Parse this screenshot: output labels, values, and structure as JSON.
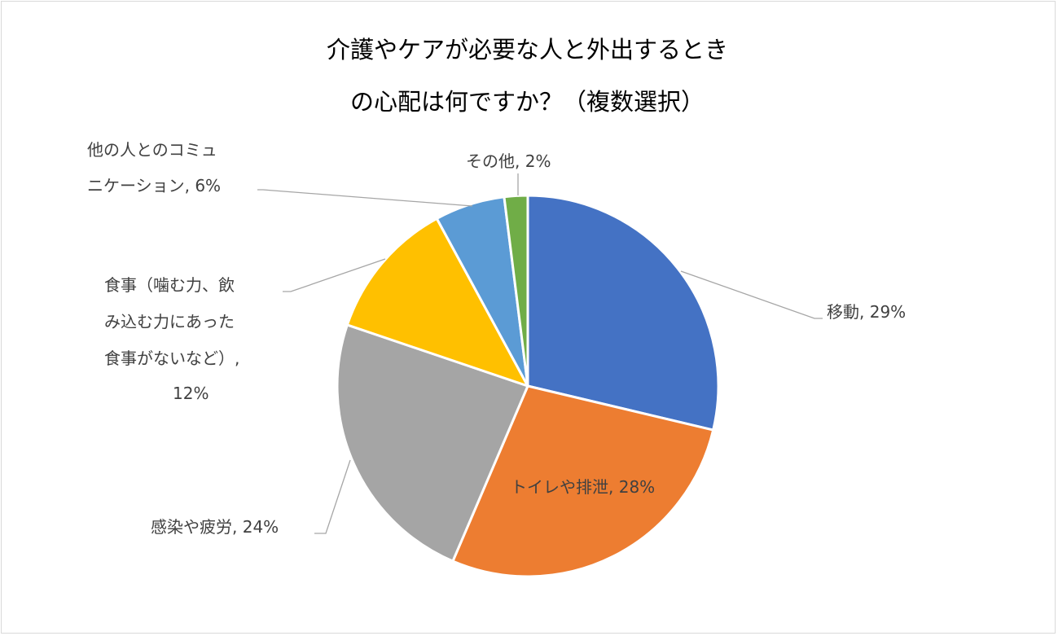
{
  "title": {
    "line1": "介護やケアが必要な人と外出するとき",
    "line2": "の心配は何ですか？（複数選択）"
  },
  "chart_data": {
    "type": "pie",
    "title": "介護やケアが必要な人と外出するときの心配は何ですか？（複数選択）",
    "categories": [
      "移動",
      "トイレや排泄",
      "感染や疲労",
      "食事（噛む力、飲み込む力にあった食事がないなど）",
      "他の人とのコミュニケーション",
      "その他"
    ],
    "values": [
      29,
      28,
      24,
      12,
      6,
      2
    ],
    "value_unit": "%",
    "colors": [
      "#4472C4",
      "#ED7D31",
      "#A5A5A5",
      "#FFC000",
      "#5B9BD5",
      "#70AD47"
    ],
    "data_labels": {
      "ido": "移動, 29%",
      "toilet": "トイレや排泄, 28%",
      "kansen": "感染や疲労, 24%",
      "shokuji_l1": "食事（噛む力、飲",
      "shokuji_l2": "み込む力にあった",
      "shokuji_l3": "食事がないなど）,",
      "shokuji_l4": "12%",
      "comm_l1": "他の人とのコミュ",
      "comm_l2": "ニケーション, 6%",
      "other": "その他, 2%"
    },
    "legend": "none"
  }
}
